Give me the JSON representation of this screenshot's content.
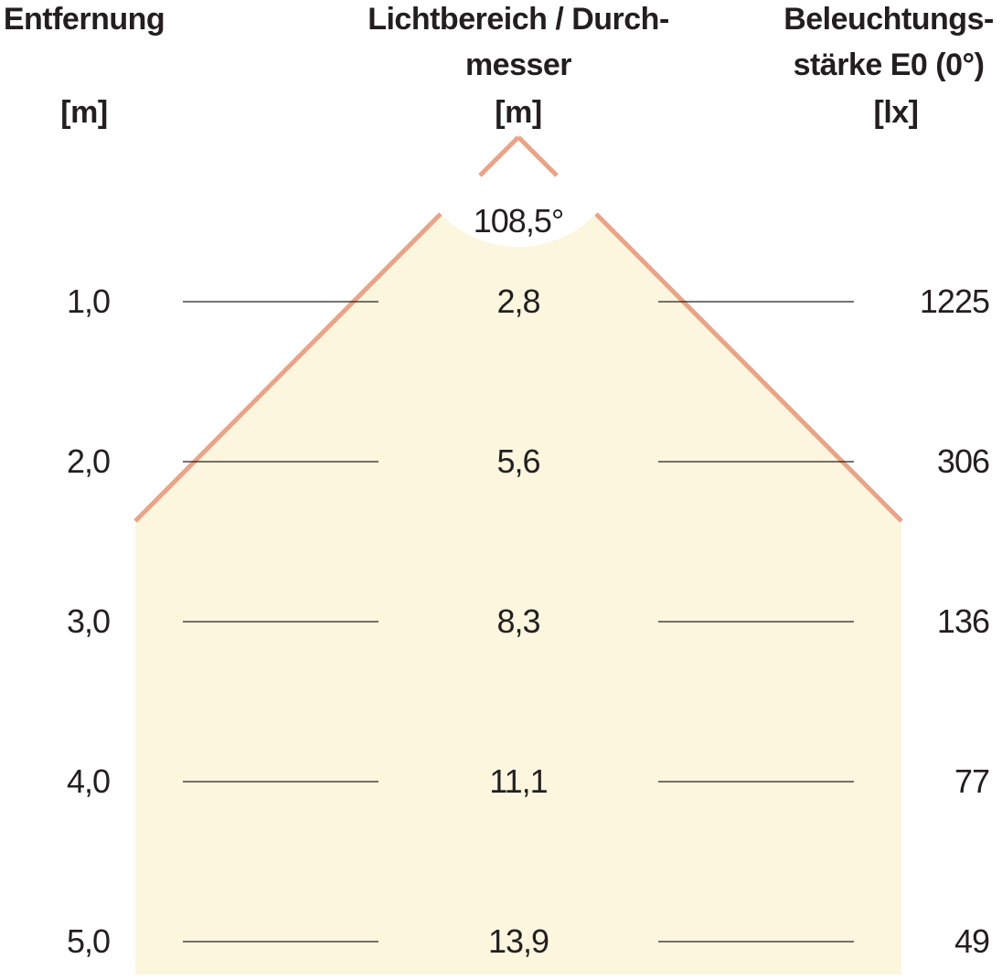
{
  "headers": {
    "distance": {
      "line1": "Entfernung",
      "unit": "[m]"
    },
    "diameter": {
      "line1": "Lichtbereich / Durch-",
      "line2": "messer",
      "unit": "[m]"
    },
    "illuminance": {
      "line1": "Beleuchtungs-",
      "line2": "stärke E0 (0°)",
      "unit": "[lx]"
    }
  },
  "beam_angle": "108,5°",
  "rows": [
    {
      "distance": "1,0",
      "diameter": "2,8",
      "illuminance": "1225"
    },
    {
      "distance": "2,0",
      "diameter": "5,6",
      "illuminance": "306"
    },
    {
      "distance": "3,0",
      "diameter": "8,3",
      "illuminance": "136"
    },
    {
      "distance": "4,0",
      "diameter": "11,1",
      "illuminance": "77"
    },
    {
      "distance": "5,0",
      "diameter": "13,9",
      "illuminance": "49"
    }
  ],
  "colors": {
    "cone_fill": "#fcf6df",
    "cone_edge": "#e9a488",
    "text": "#231f20",
    "rule_line": "#231f20"
  }
}
